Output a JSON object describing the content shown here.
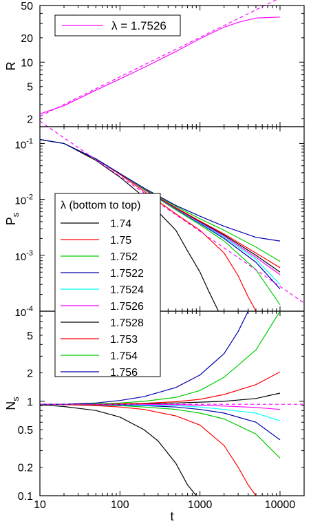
{
  "chart_data": [
    {
      "type": "line",
      "ylabel": "R",
      "xscale": "log",
      "yscale": "log",
      "xlim": [
        10,
        20000
      ],
      "ylim": [
        1.6,
        50
      ],
      "yticks": [
        2,
        5,
        10,
        20,
        50
      ],
      "grid": false,
      "legend": {
        "position": "top-left",
        "label": "λ = 1.7526"
      },
      "series": [
        {
          "name": "λ = 1.7526",
          "color": "#ff00ff",
          "style": "solid",
          "x": [
            10,
            20,
            50,
            100,
            200,
            500,
            1000,
            2000,
            3000,
            5000,
            10000
          ],
          "y": [
            2.3,
            2.9,
            4.5,
            6.2,
            8.6,
            13.5,
            19.5,
            27,
            31,
            35,
            36
          ]
        },
        {
          "name": "",
          "color": "#ff00ff",
          "style": "dashed",
          "x": [
            10,
            10000
          ],
          "y": [
            2.15,
            62
          ]
        }
      ]
    },
    {
      "type": "line",
      "ylabel": "P",
      "ylabel_sub": "s",
      "xscale": "log",
      "yscale": "log",
      "xlim": [
        10,
        20000
      ],
      "ylim": [
        0.0001,
        0.2
      ],
      "yticks": [
        0.0001,
        0.001,
        0.01,
        0.1
      ],
      "ytick_labels": [
        "10",
        "10",
        "10",
        "10"
      ],
      "ytick_exponents": [
        "-4",
        "-3",
        "-2",
        "-1"
      ],
      "grid": false,
      "series": [
        {
          "name": "1.74",
          "color": "#000000",
          "x": [
            10,
            20,
            50,
            100,
            200,
            500,
            700,
            1000,
            1300,
            1600,
            1700
          ],
          "y": [
            0.118,
            0.1,
            0.05,
            0.025,
            0.011,
            0.0028,
            0.0012,
            0.0005,
            0.00022,
            0.00012,
            0.0001
          ]
        },
        {
          "name": "1.75",
          "color": "#ff0000",
          "x": [
            10,
            20,
            50,
            100,
            200,
            500,
            1000,
            2000,
            3000,
            4000,
            5000
          ],
          "y": [
            0.118,
            0.1,
            0.053,
            0.028,
            0.014,
            0.0055,
            0.0028,
            0.0011,
            0.00043,
            0.00018,
            0.0001
          ]
        },
        {
          "name": "1.752",
          "color": "#00cc00",
          "x": [
            10,
            20,
            50,
            100,
            200,
            500,
            1000,
            2000,
            5000,
            10000
          ],
          "y": [
            0.118,
            0.1,
            0.053,
            0.029,
            0.015,
            0.0065,
            0.0035,
            0.0018,
            0.00055,
            0.00013
          ]
        },
        {
          "name": "1.7522",
          "color": "#0000aa",
          "x": [
            10,
            20,
            50,
            100,
            200,
            500,
            1000,
            2000,
            5000,
            10000
          ],
          "y": [
            0.118,
            0.1,
            0.053,
            0.029,
            0.015,
            0.0067,
            0.0037,
            0.002,
            0.00075,
            0.00025
          ]
        },
        {
          "name": "1.7524",
          "color": "#00ffff",
          "x": [
            10,
            20,
            50,
            100,
            200,
            500,
            1000,
            2000,
            5000,
            10000
          ],
          "y": [
            0.118,
            0.1,
            0.053,
            0.029,
            0.015,
            0.0068,
            0.0038,
            0.0021,
            0.00085,
            0.0003
          ]
        },
        {
          "name": "1.7526",
          "color": "#ff00ff",
          "x": [
            10,
            20,
            50,
            100,
            200,
            500,
            1000,
            2000,
            5000,
            10000
          ],
          "y": [
            0.118,
            0.1,
            0.053,
            0.029,
            0.0152,
            0.0069,
            0.0039,
            0.0022,
            0.00092,
            0.00045
          ]
        },
        {
          "name": "1.7528",
          "color": "#000000",
          "x": [
            10,
            20,
            50,
            100,
            200,
            500,
            1000,
            2000,
            5000,
            10000
          ],
          "y": [
            0.118,
            0.1,
            0.053,
            0.029,
            0.0153,
            0.007,
            0.004,
            0.0023,
            0.001,
            0.0005
          ]
        },
        {
          "name": "1.753",
          "color": "#ff0000",
          "x": [
            10,
            20,
            50,
            100,
            200,
            500,
            1000,
            2000,
            5000,
            10000
          ],
          "y": [
            0.118,
            0.1,
            0.053,
            0.029,
            0.0154,
            0.0071,
            0.0041,
            0.0024,
            0.0011,
            0.0006
          ]
        },
        {
          "name": "1.754",
          "color": "#00cc00",
          "x": [
            10,
            20,
            50,
            100,
            200,
            500,
            1000,
            2000,
            5000,
            10000
          ],
          "y": [
            0.118,
            0.1,
            0.053,
            0.029,
            0.0156,
            0.0075,
            0.0045,
            0.0028,
            0.0014,
            0.00078
          ]
        },
        {
          "name": "1.756",
          "color": "#0000aa",
          "x": [
            10,
            20,
            50,
            100,
            200,
            500,
            1000,
            2000,
            5000,
            10000
          ],
          "y": [
            0.118,
            0.1,
            0.053,
            0.029,
            0.016,
            0.0078,
            0.005,
            0.0033,
            0.0021,
            0.0018
          ]
        },
        {
          "name": "",
          "color": "#ff00ff",
          "style": "dashed",
          "x": [
            10,
            20000
          ],
          "y": [
            0.25,
            0.00014
          ]
        }
      ]
    },
    {
      "type": "line",
      "xlabel": "t",
      "ylabel": "N",
      "ylabel_sub": "s",
      "xscale": "log",
      "yscale": "log",
      "xlim": [
        10,
        20000
      ],
      "ylim": [
        0.1,
        9
      ],
      "xticks": [
        10,
        100,
        1000,
        10000
      ],
      "xtick_labels": [
        "10",
        "100",
        "1000",
        "10000"
      ],
      "yticks": [
        0.1,
        0.2,
        0.5,
        1,
        2,
        5
      ],
      "ytick_labels": [
        "0.1",
        "0.2",
        "0.5",
        "1",
        "2",
        "5"
      ],
      "grid": false,
      "legend": {
        "position": "upper-left, spanning middle and bottom panels",
        "title": "λ (bottom to top)",
        "entries": [
          "1.74",
          "1.75",
          "1.752",
          "1.7522",
          "1.7524",
          "1.7526",
          "1.7528",
          "1.753",
          "1.754",
          "1.756"
        ],
        "colors": [
          "#000000",
          "#ff0000",
          "#00cc00",
          "#0000aa",
          "#00ffff",
          "#ff00ff",
          "#000000",
          "#ff0000",
          "#00cc00",
          "#0000aa"
        ]
      },
      "series": [
        {
          "name": "1.74",
          "color": "#000000",
          "x": [
            10,
            20,
            50,
            100,
            200,
            300,
            500,
            700,
            900
          ],
          "y": [
            0.92,
            0.88,
            0.8,
            0.68,
            0.5,
            0.38,
            0.22,
            0.13,
            0.1
          ]
        },
        {
          "name": "1.75",
          "color": "#ff0000",
          "x": [
            10,
            20,
            50,
            100,
            200,
            500,
            1000,
            2000,
            3000,
            4000,
            5000
          ],
          "y": [
            0.93,
            0.92,
            0.9,
            0.87,
            0.82,
            0.7,
            0.56,
            0.34,
            0.2,
            0.13,
            0.1
          ]
        },
        {
          "name": "1.752",
          "color": "#00cc00",
          "x": [
            10,
            20,
            50,
            100,
            200,
            500,
            1000,
            2000,
            5000,
            10000
          ],
          "y": [
            0.93,
            0.93,
            0.92,
            0.9,
            0.87,
            0.82,
            0.75,
            0.65,
            0.45,
            0.25
          ]
        },
        {
          "name": "1.7522",
          "color": "#0000aa",
          "x": [
            10,
            20,
            50,
            100,
            200,
            500,
            1000,
            2000,
            5000,
            10000
          ],
          "y": [
            0.93,
            0.93,
            0.92,
            0.91,
            0.9,
            0.87,
            0.82,
            0.75,
            0.6,
            0.39
          ]
        },
        {
          "name": "1.7524",
          "color": "#00ffff",
          "x": [
            10,
            20,
            50,
            100,
            200,
            500,
            1000,
            2000,
            5000,
            10000
          ],
          "y": [
            0.93,
            0.93,
            0.93,
            0.92,
            0.91,
            0.9,
            0.87,
            0.82,
            0.75,
            0.62
          ]
        },
        {
          "name": "1.7526",
          "color": "#ff00ff",
          "x": [
            10,
            20,
            50,
            100,
            200,
            500,
            1000,
            2000,
            5000,
            10000
          ],
          "y": [
            0.93,
            0.93,
            0.93,
            0.93,
            0.93,
            0.92,
            0.91,
            0.89,
            0.86,
            0.82
          ]
        },
        {
          "name": "1.7528",
          "color": "#000000",
          "x": [
            10,
            20,
            50,
            100,
            200,
            500,
            1000,
            2000,
            5000,
            10000
          ],
          "y": [
            0.93,
            0.93,
            0.93,
            0.93,
            0.94,
            0.96,
            0.98,
            1.0,
            1.07,
            1.22
          ]
        },
        {
          "name": "1.753",
          "color": "#ff0000",
          "x": [
            10,
            20,
            50,
            100,
            200,
            500,
            1000,
            2000,
            5000,
            10000
          ],
          "y": [
            0.93,
            0.93,
            0.93,
            0.94,
            0.95,
            0.99,
            1.05,
            1.18,
            1.5,
            2.05
          ]
        },
        {
          "name": "1.754",
          "color": "#00cc00",
          "x": [
            10,
            20,
            50,
            100,
            200,
            500,
            1000,
            2000,
            5000,
            10000
          ],
          "y": [
            0.93,
            0.93,
            0.94,
            0.96,
            1.0,
            1.1,
            1.3,
            1.8,
            3.5,
            9.0
          ]
        },
        {
          "name": "1.756",
          "color": "#0000aa",
          "x": [
            10,
            20,
            50,
            100,
            200,
            500,
            1000,
            2000,
            3000,
            4000
          ],
          "y": [
            0.93,
            0.93,
            0.96,
            1.02,
            1.12,
            1.4,
            1.9,
            3.2,
            5.5,
            9.0
          ]
        },
        {
          "name": "",
          "color": "#ff00ff",
          "style": "dashed",
          "x": [
            10,
            20000
          ],
          "y": [
            0.93,
            0.93
          ]
        }
      ]
    }
  ]
}
